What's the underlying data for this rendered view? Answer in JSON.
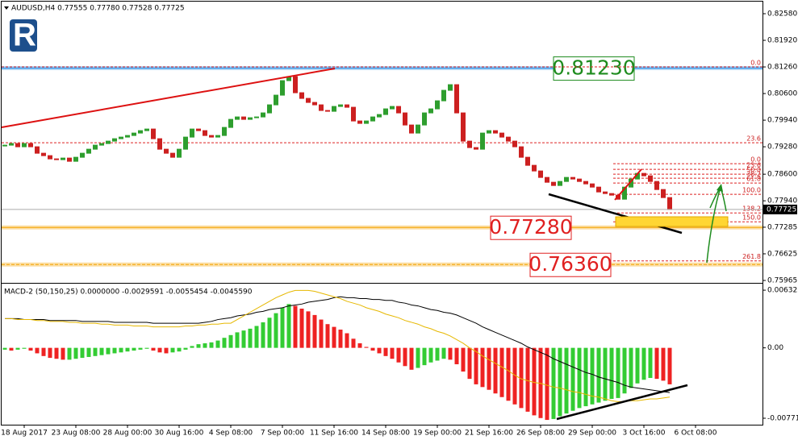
{
  "logo": "RoboForex",
  "chart_data": [
    {
      "type": "candlestick",
      "title": "AUDUSD,H4  0.77555 0.77780 0.77528 0.77725",
      "categories": [
        null,
        null,
        null,
        "18 Aug 2017",
        null,
        null,
        null,
        null,
        null,
        null,
        null,
        "23 Aug 08:00",
        null,
        null,
        null,
        null,
        null,
        null,
        null,
        "28 Aug 00:00",
        null,
        null,
        null,
        null,
        null,
        null,
        null,
        "30 Aug 16:00",
        null,
        null,
        null,
        null,
        null,
        null,
        null,
        "4 Sep 08:00",
        null,
        null,
        null,
        null,
        null,
        null,
        null,
        "7 Sep 00:00",
        null,
        null,
        null,
        null,
        null,
        null,
        null,
        "11 Sep 16:00",
        null,
        null,
        null,
        null,
        null,
        null,
        null,
        "14 Sep 08:00",
        null,
        null,
        null,
        null,
        null,
        null,
        null,
        "19 Sep 00:00",
        null,
        null,
        null,
        null,
        null,
        null,
        null,
        "21 Sep 16:00",
        null,
        null,
        null,
        null,
        null,
        null,
        null,
        "26 Sep 08:00",
        null,
        null,
        null,
        null,
        null,
        null,
        null,
        "29 Sep 00:00",
        null,
        null,
        null,
        null,
        null,
        null,
        null,
        "3 Oct 16:00",
        null,
        null,
        null,
        null,
        null,
        null,
        null,
        "6 Oct 08:00"
      ],
      "close": [
        0.7932,
        0.7936,
        0.7928,
        0.7936,
        0.7928,
        0.7912,
        0.7906,
        0.7898,
        0.7896,
        0.79,
        0.7892,
        0.7902,
        0.7912,
        0.7922,
        0.7932,
        0.7936,
        0.7942,
        0.7948,
        0.7952,
        0.7956,
        0.7962,
        0.7968,
        0.7972,
        0.7948,
        0.7922,
        0.7912,
        0.7902,
        0.7922,
        0.7952,
        0.7972,
        0.7968,
        0.7956,
        0.7952,
        0.7956,
        0.7976,
        0.7996,
        0.8002,
        0.7996,
        0.8,
        0.8002,
        0.8012,
        0.8032,
        0.8056,
        0.8092,
        0.8102,
        0.8062,
        0.8048,
        0.8038,
        0.8032,
        0.8018,
        0.8016,
        0.8028,
        0.8032,
        0.8026,
        0.7992,
        0.7986,
        0.7992,
        0.8002,
        0.8008,
        0.8022,
        0.8028,
        0.8012,
        0.7982,
        0.7962,
        0.7982,
        0.8012,
        0.8022,
        0.8042,
        0.8068,
        0.8082,
        0.8012,
        0.7942,
        0.7926,
        0.7922,
        0.7962,
        0.7968,
        0.7962,
        0.7952,
        0.7942,
        0.7928,
        0.7902,
        0.7882,
        0.7868,
        0.7852,
        0.784,
        0.7832,
        0.7842,
        0.7852,
        0.7848,
        0.7842,
        0.7836,
        0.7828,
        0.7816,
        0.7812,
        0.7808,
        0.7798,
        0.7828,
        0.7848,
        0.7862,
        0.7856,
        0.7842,
        0.7822,
        0.7802,
        0.77725,
        null,
        null,
        null,
        null
      ],
      "up_color": "#2e9e2e",
      "down_color": "#cc2020",
      "ylim": [
        0.75925,
        0.8288
      ],
      "yticks": [
        {
          "value": 0.8258,
          "label": "0.82580"
        },
        {
          "value": 0.8192,
          "label": "0.81920"
        },
        {
          "value": 0.8126,
          "label": "0.81260"
        },
        {
          "value": 0.806,
          "label": "0.80600"
        },
        {
          "value": 0.7994,
          "label": "0.79940"
        },
        {
          "value": 0.7928,
          "label": "0.79280"
        },
        {
          "value": 0.786,
          "label": "0.78600"
        },
        {
          "value": 0.7794,
          "label": "0.77940"
        },
        0.77285,
        {
          "value": 0.76625,
          "label": "0.76625"
        },
        0.75965
      ],
      "key_levels": [
        {
          "value": 0.8123,
          "label": "0.81230",
          "color": "#1e8c1e",
          "line_color": "#1e88e5"
        },
        {
          "value": 0.7728,
          "label": "0.77280",
          "color": "#e02020",
          "line_color": "#f5a300"
        },
        {
          "value": 0.7636,
          "label": "0.76360",
          "color": "#e02020",
          "line_color": "#f5a300"
        }
      ],
      "fib_main": [
        {
          "value": 0.8126,
          "label": "0.0"
        },
        {
          "value": 0.7938,
          "label": "23.6"
        }
      ],
      "fib_recent": [
        {
          "value": 0.7886,
          "label": "0.0"
        },
        {
          "value": 0.7872,
          "label": "23.6"
        },
        {
          "value": 0.786,
          "label": "50.0"
        },
        {
          "value": 0.785,
          "label": "38.2"
        },
        {
          "value": 0.7838,
          "label": "61.8"
        },
        {
          "value": 0.781,
          "label": "100.0"
        },
        {
          "value": 0.7764,
          "label": "138.2"
        },
        {
          "value": 0.7742,
          "label": "150.0"
        },
        {
          "value": 0.7645,
          "label": "261.8"
        }
      ],
      "last_price": {
        "value": 0.77725,
        "label": "0.77725"
      }
    },
    {
      "type": "macd",
      "title": "MACD-2 (50,150,25) 0.0000000 -0.0029591 -0.0055454 -0.0045590",
      "histogram": [
        -0.0002,
        -0.0003,
        -0.0002,
        -0.0001,
        -0.0003,
        -0.0006,
        -0.0009,
        -0.0011,
        -0.0012,
        -0.0013,
        -0.0013,
        -0.0012,
        -0.0011,
        -0.001,
        -0.0009,
        -0.0008,
        -0.0007,
        -0.0006,
        -0.0005,
        -0.0004,
        -0.0003,
        -0.0002,
        -0.0001,
        -0.0003,
        -0.0005,
        -0.0006,
        -0.0005,
        -0.0004,
        -0.0002,
        0.0002,
        0.0004,
        0.0005,
        0.0006,
        0.0008,
        0.0011,
        0.0014,
        0.0017,
        0.0019,
        0.0021,
        0.0024,
        0.0028,
        0.0033,
        0.0038,
        0.0044,
        0.0048,
        0.0046,
        0.0043,
        0.004,
        0.0036,
        0.0031,
        0.0026,
        0.0023,
        0.002,
        0.0016,
        0.001,
        0.0005,
        0.0001,
        -0.0003,
        -0.0006,
        -0.0009,
        -0.0012,
        -0.0016,
        -0.002,
        -0.0024,
        -0.0022,
        -0.0019,
        -0.0016,
        -0.0014,
        -0.0012,
        -0.0013,
        -0.0018,
        -0.0026,
        -0.0034,
        -0.004,
        -0.0043,
        -0.0046,
        -0.005,
        -0.0054,
        -0.0058,
        -0.0062,
        -0.0066,
        -0.007,
        -0.0074,
        -0.0077,
        -0.0079,
        -0.0078,
        -0.0075,
        -0.0072,
        -0.0069,
        -0.0066,
        -0.0064,
        -0.0062,
        -0.006,
        -0.0058,
        -0.0056,
        -0.0055,
        -0.005,
        -0.0044,
        -0.0039,
        -0.0035,
        -0.0033,
        -0.0034,
        -0.0036,
        -0.004,
        null,
        null,
        null,
        null
      ],
      "up_color": "#33cc33",
      "down_color": "#ee2222",
      "lines": [
        {
          "color": "#000000",
          "values": [
            0.0032,
            0.0032,
            0.0032,
            0.0031,
            0.0031,
            0.0031,
            0.0031,
            0.003,
            0.003,
            0.003,
            0.003,
            0.003,
            0.0029,
            0.0029,
            0.0029,
            0.0029,
            0.0029,
            0.0028,
            0.0028,
            0.0028,
            0.0028,
            0.0028,
            0.0028,
            0.0027,
            0.0027,
            0.0027,
            0.0027,
            0.0027,
            0.0027,
            0.0027,
            0.0027,
            0.0028,
            0.0029,
            0.0031,
            0.0032,
            0.0033,
            0.0035,
            0.0036,
            0.0037,
            0.0039,
            0.004,
            0.0042,
            0.0043,
            0.0044,
            0.0046,
            0.0047,
            0.0048,
            0.005,
            0.0051,
            0.0052,
            0.0053,
            0.0055,
            0.0056,
            0.0055,
            0.0055,
            0.0054,
            0.0054,
            0.0053,
            0.0053,
            0.0052,
            0.0052,
            0.005,
            0.0049,
            0.0047,
            0.0046,
            0.0044,
            0.0042,
            0.0041,
            0.0039,
            0.0038,
            0.0036,
            0.0033,
            0.003,
            0.0027,
            0.0023,
            0.002,
            0.0017,
            0.0014,
            0.0011,
            0.0008,
            0.0005,
            0.0001,
            -0.0002,
            -0.0005,
            -0.0008,
            -0.0012,
            -0.0015,
            -0.0018,
            -0.0021,
            -0.0024,
            -0.0027,
            -0.0029,
            -0.0032,
            -0.0034,
            -0.0036,
            -0.0038,
            -0.0041,
            -0.0043,
            -0.0044,
            -0.0045,
            -0.0046,
            -0.0047,
            -0.0048,
            -0.0049,
            null,
            null,
            null,
            null
          ]
        },
        {
          "color": "#e6b800",
          "values": [
            0.0032,
            0.0032,
            0.0031,
            0.0031,
            0.0031,
            0.003,
            0.003,
            0.0029,
            0.0029,
            0.0029,
            0.0028,
            0.0028,
            0.0027,
            0.0027,
            0.0027,
            0.0026,
            0.0026,
            0.0025,
            0.0025,
            0.0025,
            0.0024,
            0.0024,
            0.0024,
            0.0023,
            0.0023,
            0.0023,
            0.0023,
            0.0023,
            0.0024,
            0.0024,
            0.0025,
            0.0025,
            0.0026,
            0.0026,
            0.0027,
            0.0027,
            0.0031,
            0.0035,
            0.0039,
            0.0043,
            0.0047,
            0.0051,
            0.0055,
            0.0058,
            0.0061,
            0.0063,
            0.0063,
            0.0063,
            0.0062,
            0.006,
            0.0058,
            0.0056,
            0.0054,
            0.0051,
            0.0049,
            0.0047,
            0.0044,
            0.0042,
            0.004,
            0.0037,
            0.0035,
            0.0033,
            0.003,
            0.0028,
            0.0026,
            0.0023,
            0.0021,
            0.0018,
            0.0016,
            0.0013,
            0.0009,
            0.0005,
            0,
            -0.0004,
            -0.0009,
            -0.0013,
            -0.0017,
            -0.0021,
            -0.0025,
            -0.003,
            -0.0034,
            -0.0036,
            -0.0038,
            -0.0039,
            -0.0041,
            -0.0043,
            -0.0044,
            -0.0046,
            -0.0048,
            -0.0049,
            -0.0051,
            -0.0053,
            -0.0054,
            -0.0056,
            -0.0058,
            -0.0059,
            -0.0059,
            -0.0058,
            -0.0058,
            -0.0057,
            -0.0056,
            -0.0056,
            -0.0055,
            -0.0054,
            null,
            null,
            null,
            null
          ]
        }
      ],
      "ylim": [
        -0.00816,
        0.00686
      ],
      "yticks": [
        0.006323,
        {
          "value": 0,
          "label": "0.00"
        },
        -0.007719
      ]
    }
  ]
}
